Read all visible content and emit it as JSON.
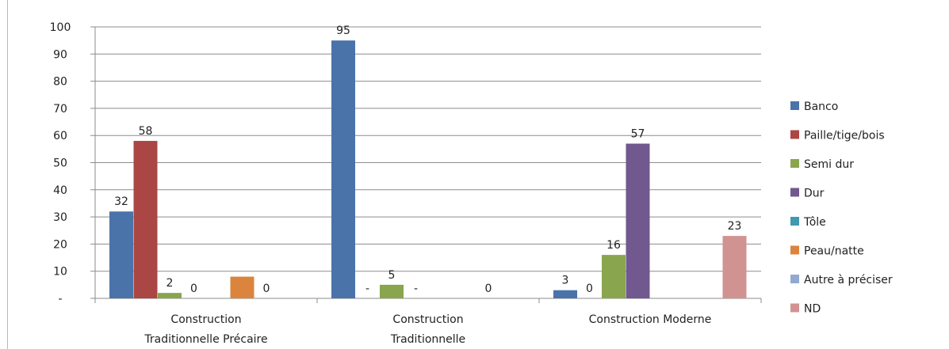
{
  "chart_data": {
    "type": "bar",
    "title": "",
    "xlabel": "",
    "ylabel": "",
    "ylim": [
      0,
      100
    ],
    "yticks": [
      0,
      10,
      20,
      30,
      40,
      50,
      60,
      70,
      80,
      90,
      100
    ],
    "ytick_labels": [
      "-",
      "10",
      "20",
      "30",
      "40",
      "50",
      "60",
      "70",
      "80",
      "90",
      "100"
    ],
    "grid": true,
    "legend_position": "right",
    "categories": [
      [
        "Construction",
        "Traditionnelle Précaire"
      ],
      [
        "Construction",
        "Traditionnelle"
      ],
      [
        "Construction Moderne"
      ]
    ],
    "series": [
      {
        "name": "Banco",
        "color": "#4a73aa",
        "values": [
          32,
          95,
          3
        ],
        "labels": [
          "32",
          "95",
          "3"
        ]
      },
      {
        "name": "Paille/tige/bois",
        "color": "#aa4644",
        "values": [
          58,
          0,
          0
        ],
        "labels": [
          "58",
          "-",
          "0"
        ]
      },
      {
        "name": "Semi dur",
        "color": "#89a54e",
        "values": [
          2,
          5,
          16
        ],
        "labels": [
          "2",
          "5",
          "16"
        ]
      },
      {
        "name": "Dur",
        "color": "#71588f",
        "values": [
          0,
          0,
          57
        ],
        "labels": [
          "0",
          "-",
          "57"
        ]
      },
      {
        "name": "Tôle",
        "color": "#4198af",
        "values": [
          0,
          0,
          0
        ],
        "labels": [
          "",
          "",
          ""
        ]
      },
      {
        "name": "Peau/natte",
        "color": "#db843d",
        "values": [
          8,
          0,
          0
        ],
        "labels": [
          "",
          "",
          ""
        ]
      },
      {
        "name": "Autre à préciser",
        "color": "#93a9cf",
        "values": [
          0,
          0,
          0
        ],
        "labels": [
          "0",
          "0",
          ""
        ]
      },
      {
        "name": "ND",
        "color": "#d19392",
        "values": [
          0,
          0,
          23
        ],
        "labels": [
          "",
          "",
          "23"
        ]
      }
    ]
  }
}
